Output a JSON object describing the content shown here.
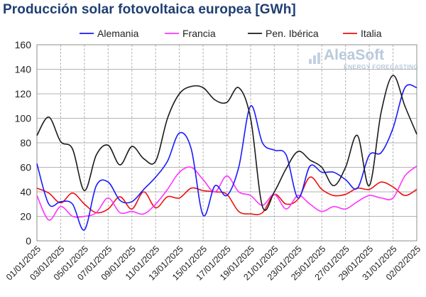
{
  "title": "Producción solar fotovoltaica europea [GWh]",
  "logo": {
    "name": "AleaSoft",
    "tagline": "ENERGY FORECASTING"
  },
  "colors": {
    "Alemania": "#1a1aff",
    "Francia": "#ff33ff",
    "Pen. Ibérica": "#1a1a1a",
    "Italia": "#ee1111",
    "grid": "#b3b3b3",
    "title": "#1f3e73"
  },
  "chart_data": {
    "type": "line",
    "ylim": [
      0,
      160
    ],
    "yticks": [
      "0",
      "20",
      "40",
      "60",
      "80",
      "100",
      "120",
      "140",
      "160"
    ],
    "x_tick_labels": [
      "01/01/2025",
      "03/01/2025",
      "05/01/2025",
      "07/01/2025",
      "09/01/2025",
      "11/01/2025",
      "13/01/2025",
      "15/01/2025",
      "17/01/2025",
      "19/01/2025",
      "21/01/2025",
      "23/01/2025",
      "25/01/2025",
      "27/01/2025",
      "29/01/2025",
      "31/01/2025",
      "02/02/2025"
    ],
    "x": [
      "01/01/2025",
      "02/01/2025",
      "03/01/2025",
      "04/01/2025",
      "05/01/2025",
      "06/01/2025",
      "07/01/2025",
      "08/01/2025",
      "09/01/2025",
      "10/01/2025",
      "11/01/2025",
      "12/01/2025",
      "13/01/2025",
      "14/01/2025",
      "15/01/2025",
      "16/01/2025",
      "17/01/2025",
      "18/01/2025",
      "19/01/2025",
      "20/01/2025",
      "21/01/2025",
      "22/01/2025",
      "23/01/2025",
      "24/01/2025",
      "25/01/2025",
      "26/01/2025",
      "27/01/2025",
      "28/01/2025",
      "29/01/2025",
      "30/01/2025",
      "31/01/2025",
      "01/02/2025",
      "02/02/2025"
    ],
    "grid": true,
    "legend_position": "top",
    "series": [
      {
        "name": "Alemania",
        "values": [
          63,
          30,
          32,
          30,
          9,
          45,
          48,
          33,
          32,
          42,
          52,
          65,
          88,
          75,
          21,
          45,
          37,
          60,
          110,
          80,
          74,
          70,
          35,
          61,
          56,
          56,
          50,
          43,
          70,
          72,
          92,
          125,
          125
        ]
      },
      {
        "name": "Francia",
        "values": [
          37,
          17,
          28,
          20,
          20,
          23,
          35,
          23,
          24,
          22,
          30,
          42,
          56,
          60,
          50,
          40,
          53,
          40,
          37,
          29,
          38,
          26,
          37,
          30,
          24,
          28,
          26,
          32,
          37,
          35,
          35,
          53,
          61
        ]
      },
      {
        "name": "Pen. Ibérica",
        "values": [
          86,
          101,
          81,
          75,
          41,
          70,
          78,
          62,
          77,
          67,
          65,
          100,
          120,
          126,
          125,
          115,
          113,
          125,
          100,
          28,
          40,
          59,
          73,
          66,
          60,
          45,
          60,
          86,
          45,
          105,
          135,
          110,
          87
        ]
      },
      {
        "name": "Italia",
        "values": [
          43,
          39,
          31,
          39,
          30,
          23,
          26,
          36,
          26,
          40,
          27,
          36,
          35,
          43,
          41,
          40,
          38,
          24,
          22,
          23,
          38,
          30,
          34,
          52,
          42,
          37,
          38,
          43,
          42,
          48,
          44,
          37,
          42
        ]
      }
    ]
  }
}
